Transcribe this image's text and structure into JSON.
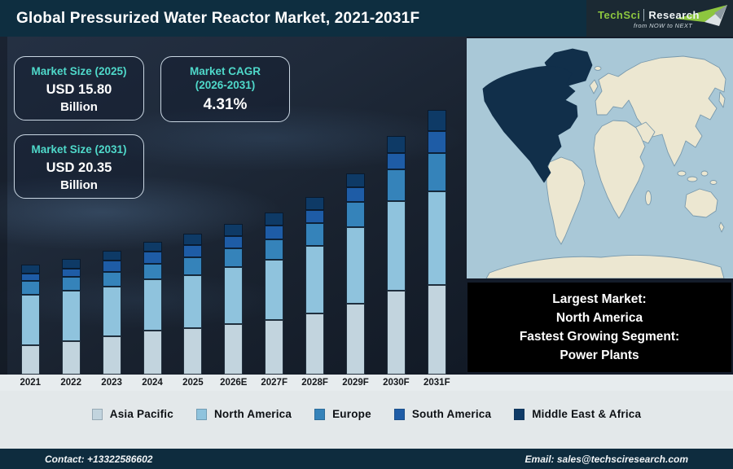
{
  "header": {
    "title": "Global Pressurized Water Reactor Market, 2021-2031F",
    "logo": {
      "brand_primary": "TechSci",
      "brand_secondary": "Research",
      "tagline": "from NOW to NEXT"
    }
  },
  "info_boxes": [
    {
      "label": "Market Size (2025)",
      "value": "USD 15.80",
      "unit": "Billion"
    },
    {
      "label_line1": "Market CAGR",
      "label_line2": "(2026-2031)",
      "value": "4.31%"
    },
    {
      "label": "Market Size (2031)",
      "value": "USD 20.35",
      "unit": "Billion"
    }
  ],
  "map_callout": {
    "line1": "Largest Market:",
    "line2": "North America",
    "line3": "Fastest Growing Segment:",
    "line4": "Power Plants"
  },
  "footer": {
    "contact": "Contact: +13322586602",
    "email": "Email: sales@techsciresearch.com"
  },
  "chart_data": {
    "type": "bar",
    "stacked": true,
    "title": "Global Pressurized Water Reactor Market, 2021-2031F",
    "xlabel": "",
    "ylabel": "",
    "axis_values_shown": false,
    "unit": "relative stacked height (px, no numeric axis shown)",
    "categories": [
      "2021",
      "2022",
      "2023",
      "2024",
      "2025",
      "2026E",
      "2027F",
      "2028F",
      "2029F",
      "2030F",
      "2031F"
    ],
    "series": [
      {
        "name": "Asia Pacific",
        "color": "#c2d4de",
        "values": [
          36,
          41,
          47,
          54,
          57,
          62,
          67,
          75,
          87,
          103,
          110
        ]
      },
      {
        "name": "North America",
        "color": "#8fc3dd",
        "values": [
          62,
          62,
          61,
          63,
          65,
          70,
          74,
          83,
          94,
          110,
          115
        ]
      },
      {
        "name": "Europe",
        "color": "#3583ba",
        "values": [
          17,
          17,
          18,
          19,
          22,
          23,
          25,
          28,
          31,
          39,
          47
        ]
      },
      {
        "name": "South America",
        "color": "#1e5ca6",
        "values": [
          9,
          10,
          14,
          15,
          15,
          15,
          17,
          16,
          18,
          20,
          27
        ]
      },
      {
        "name": "Middle East & Africa",
        "color": "#0e3a66",
        "values": [
          11,
          12,
          12,
          12,
          14,
          15,
          16,
          16,
          17,
          21,
          26
        ]
      }
    ],
    "annotations": {
      "market_size_2025_usd_billion": 15.8,
      "market_size_2031_usd_billion": 20.35,
      "cagr_2026_2031_percent": 4.31,
      "largest_market": "North America",
      "fastest_growing_segment": "Power Plants"
    },
    "legend_position": "bottom"
  },
  "colors": {
    "header_bg": "#0e2e40",
    "logo_panel_bg": "#1b2933",
    "brand_green": "#8dc63f",
    "accent_teal": "#4fd9ca",
    "chart_bg": "#1c2634",
    "panel_light_bg": "#e3e8ea",
    "callout_bg": "#000000",
    "footer_bg": "#0e2c3e",
    "map_ocean": "#a9c8d7",
    "map_land": "#ece7d1",
    "map_highlight": "#112f4a"
  }
}
